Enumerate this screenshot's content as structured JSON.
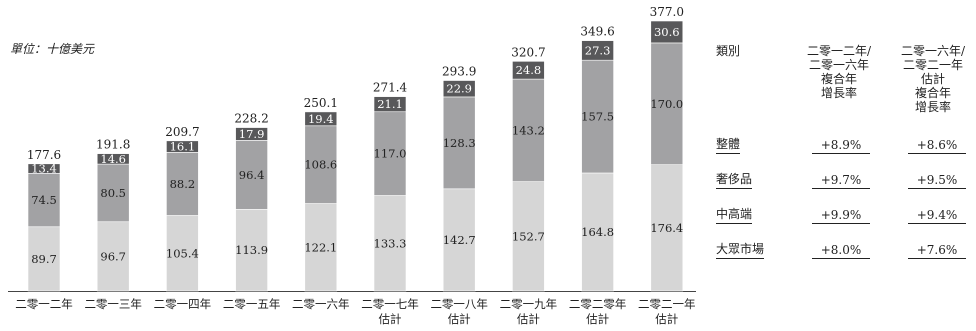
{
  "chart_data": {
    "type": "bar",
    "stacked": true,
    "unit_label": "單位：十億美元",
    "categories": [
      [
        "二零一二年"
      ],
      [
        "二零一三年"
      ],
      [
        "二零一四年"
      ],
      [
        "二零一五年"
      ],
      [
        "二零一六年"
      ],
      [
        "二零一七年",
        "估計"
      ],
      [
        "二零一八年",
        "估計"
      ],
      [
        "二零一九年",
        "估計"
      ],
      [
        "二零二零年",
        "估計"
      ],
      [
        "二零二一年",
        "估計"
      ]
    ],
    "series": [
      {
        "values": [
          89.7,
          96.7,
          105.4,
          113.9,
          122.1,
          133.3,
          142.7,
          152.7,
          164.8,
          176.4
        ],
        "color": "#d6d6d6"
      },
      {
        "values": [
          74.5,
          80.5,
          88.2,
          96.4,
          108.6,
          117.0,
          128.3,
          143.2,
          157.5,
          170.0
        ],
        "color": "#a2a2a4"
      },
      {
        "values": [
          13.4,
          14.6,
          16.1,
          17.9,
          19.4,
          21.1,
          22.9,
          24.8,
          27.3,
          30.6
        ],
        "color": "#58585a"
      }
    ],
    "totals": [
      177.6,
      191.8,
      209.7,
      228.2,
      250.1,
      271.4,
      293.9,
      320.7,
      349.6,
      377.0
    ],
    "ylim": [
      0,
      377.0
    ]
  },
  "table": {
    "headers": [
      "類別",
      "二零一二年/\n二零一六年\n複合年\n增長率",
      "二零一六年/\n二零二一年估計\n複合年\n增長率"
    ],
    "rows": [
      {
        "label": "整體",
        "v1": "+8.9%",
        "v2": "+8.6%"
      },
      {
        "label": "奢侈品",
        "v1": "+9.7%",
        "v2": "+9.5%"
      },
      {
        "label": "中高端",
        "v1": "+9.9%",
        "v2": "+9.4%"
      },
      {
        "label": "大眾市場",
        "v1": "+8.0%",
        "v2": "+7.6%"
      }
    ]
  }
}
